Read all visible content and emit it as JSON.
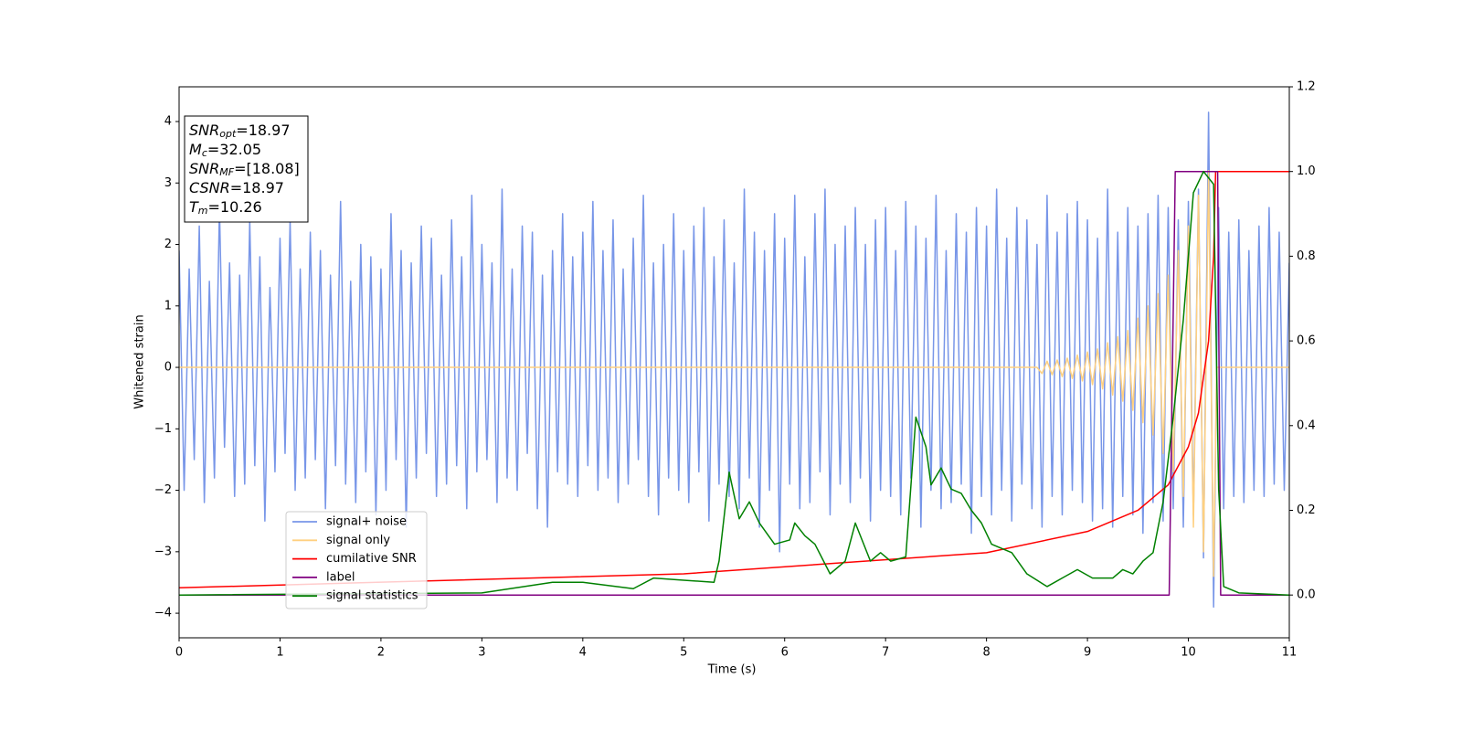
{
  "chart_data": {
    "type": "line",
    "xlabel": "Time (s)",
    "ylabel": "Whitened strain",
    "xlim": [
      0,
      11
    ],
    "xticks": [
      0,
      1,
      2,
      3,
      4,
      5,
      6,
      7,
      8,
      9,
      10,
      11
    ],
    "ylim": [
      -4.4,
      4.565
    ],
    "yticks": [
      {
        "value": -4,
        "label": "−4"
      },
      {
        "value": -3,
        "label": "−3"
      },
      {
        "value": -2,
        "label": "−2"
      },
      {
        "value": -1,
        "label": "−1"
      },
      0,
      1,
      2,
      3,
      4
    ],
    "y2lim": [
      -0.101,
      1.2
    ],
    "y2ticks": [
      {
        "value": 0,
        "label": "0.0"
      },
      {
        "value": 0.2,
        "label": "0.2"
      },
      {
        "value": 0.4,
        "label": "0.4"
      },
      {
        "value": 0.6,
        "label": "0.6"
      },
      {
        "value": 0.8,
        "label": "0.8"
      },
      {
        "value": 1.0,
        "label": "1.0"
      },
      {
        "value": 1.2,
        "label": "1.2"
      }
    ],
    "legend": "lower left",
    "annotation": [
      {
        "base": "SNR",
        "sub": "opt",
        "rest": "=18.97"
      },
      {
        "base": "M",
        "sub": "c",
        "rest": "=32.05"
      },
      {
        "base": "SNR",
        "sub": "MF",
        "rest": "=[18.08]"
      },
      {
        "base": "CSNR",
        "sub": "",
        "rest": "=18.97"
      },
      {
        "base": "T",
        "sub": "m",
        "rest": "=10.26"
      }
    ],
    "series": [
      {
        "name": "signal+ noise",
        "color": "#7896e8",
        "x": [
          0,
          0.05,
          0.1,
          0.15,
          0.2,
          0.25,
          0.3,
          0.35,
          0.4,
          0.45,
          0.5,
          0.55,
          0.6,
          0.65,
          0.7,
          0.75,
          0.8,
          0.85,
          0.9,
          0.95,
          1,
          1.05,
          1.1,
          1.15,
          1.2,
          1.25,
          1.3,
          1.35,
          1.4,
          1.45,
          1.5,
          1.55,
          1.6,
          1.65,
          1.7,
          1.75,
          1.8,
          1.85,
          1.9,
          1.95,
          2,
          2.05,
          2.1,
          2.15,
          2.2,
          2.25,
          2.3,
          2.35,
          2.4,
          2.45,
          2.5,
          2.55,
          2.6,
          2.65,
          2.7,
          2.75,
          2.8,
          2.85,
          2.9,
          2.95,
          3,
          3.05,
          3.1,
          3.15,
          3.2,
          3.25,
          3.3,
          3.35,
          3.4,
          3.45,
          3.5,
          3.55,
          3.6,
          3.65,
          3.7,
          3.75,
          3.8,
          3.85,
          3.9,
          3.95,
          4,
          4.05,
          4.1,
          4.15,
          4.2,
          4.25,
          4.3,
          4.35,
          4.4,
          4.45,
          4.5,
          4.55,
          4.6,
          4.65,
          4.7,
          4.75,
          4.8,
          4.85,
          4.9,
          4.95,
          5,
          5.05,
          5.1,
          5.15,
          5.2,
          5.25,
          5.3,
          5.35,
          5.4,
          5.45,
          5.5,
          5.55,
          5.6,
          5.65,
          5.7,
          5.75,
          5.8,
          5.85,
          5.9,
          5.95,
          6,
          6.05,
          6.1,
          6.15,
          6.2,
          6.25,
          6.3,
          6.35,
          6.4,
          6.45,
          6.5,
          6.55,
          6.6,
          6.65,
          6.7,
          6.75,
          6.8,
          6.85,
          6.9,
          6.95,
          7,
          7.05,
          7.1,
          7.15,
          7.2,
          7.25,
          7.3,
          7.35,
          7.4,
          7.45,
          7.5,
          7.55,
          7.6,
          7.65,
          7.7,
          7.75,
          7.8,
          7.85,
          7.9,
          7.95,
          8,
          8.05,
          8.1,
          8.15,
          8.2,
          8.25,
          8.3,
          8.35,
          8.4,
          8.45,
          8.5,
          8.55,
          8.6,
          8.65,
          8.7,
          8.75,
          8.8,
          8.85,
          8.9,
          8.95,
          9,
          9.05,
          9.1,
          9.15,
          9.2,
          9.25,
          9.3,
          9.35,
          9.4,
          9.45,
          9.5,
          9.55,
          9.6,
          9.65,
          9.7,
          9.75,
          9.8,
          9.85,
          9.9,
          9.95,
          10,
          10.05,
          10.1,
          10.15,
          10.2,
          10.25,
          10.3,
          10.35,
          10.4,
          10.45,
          10.5,
          10.55,
          10.6,
          10.65,
          10.7,
          10.75,
          10.8,
          10.85,
          10.9,
          10.95,
          11
        ],
        "values": [
          1.9,
          -2.0,
          1.6,
          -1.5,
          2.3,
          -2.2,
          1.4,
          -1.8,
          2.6,
          -1.3,
          1.7,
          -2.1,
          1.5,
          -1.9,
          2.4,
          -1.6,
          1.8,
          -2.5,
          1.3,
          -1.7,
          2.1,
          -1.4,
          2.4,
          -2.0,
          1.6,
          -1.8,
          2.2,
          -1.5,
          1.9,
          -2.3,
          1.5,
          -1.6,
          2.7,
          -1.9,
          1.4,
          -2.2,
          2.0,
          -1.7,
          1.8,
          -2.4,
          1.6,
          -2.0,
          2.5,
          -1.5,
          1.9,
          -2.6,
          1.7,
          -1.8,
          2.3,
          -1.4,
          2.1,
          -2.1,
          1.5,
          -1.9,
          2.4,
          -1.6,
          1.8,
          -2.3,
          2.8,
          -1.7,
          2.0,
          -1.5,
          1.7,
          -2.2,
          2.9,
          -1.8,
          1.6,
          -2.0,
          2.3,
          -1.4,
          2.2,
          -2.3,
          1.5,
          -2.6,
          1.9,
          -1.7,
          2.5,
          -1.9,
          1.8,
          -2.1,
          2.2,
          -1.6,
          2.7,
          -2.0,
          1.9,
          -1.8,
          2.4,
          -2.2,
          1.6,
          -1.9,
          2.1,
          -1.5,
          2.8,
          -2.1,
          1.7,
          -2.4,
          2.0,
          -1.8,
          2.5,
          -2.0,
          1.9,
          -2.2,
          2.3,
          -1.7,
          2.6,
          -2.5,
          1.8,
          -1.9,
          2.4,
          -2.1,
          1.7,
          -2.3,
          2.9,
          -1.8,
          2.2,
          -2.6,
          1.9,
          -2.0,
          2.5,
          -3.0,
          2.1,
          -1.9,
          2.8,
          -2.3,
          1.8,
          -2.2,
          2.5,
          -1.7,
          2.9,
          -2.4,
          2.0,
          -1.9,
          2.3,
          -2.2,
          2.6,
          -1.8,
          2.0,
          -2.5,
          2.4,
          -2.0,
          2.6,
          -2.1,
          1.9,
          -2.4,
          2.7,
          -1.8,
          2.3,
          -2.6,
          2.1,
          -2.0,
          2.8,
          -2.3,
          1.9,
          -2.2,
          2.5,
          -1.9,
          2.2,
          -2.7,
          2.6,
          -2.1,
          2.3,
          -2.4,
          2.9,
          -2.0,
          2.1,
          -2.5,
          2.6,
          -1.9,
          2.4,
          -2.3,
          2.0,
          -2.6,
          2.8,
          -2.1,
          2.2,
          -2.4,
          2.5,
          -2.0,
          2.7,
          -2.2,
          2.4,
          -2.5,
          2.1,
          -2.3,
          2.9,
          -2.6,
          2.2,
          -2.1,
          2.6,
          -2.4,
          2.3,
          -2.7,
          2.5,
          -2.2,
          2.8,
          -2.5,
          2.6,
          -2.3,
          2.4,
          -2.6,
          2.7,
          -2.4,
          2.9,
          -3.1,
          4.15,
          -3.9,
          2.6,
          -2.3,
          2.2,
          -2.1,
          2.4,
          -2.2,
          1.9,
          -2.0,
          2.3,
          -2.1,
          2.6,
          -1.9,
          2.2,
          -2.0,
          1.7
        ]
      },
      {
        "name": "signal only",
        "color": "#ffd080",
        "x": [
          0,
          8.5,
          8.55,
          8.6,
          8.65,
          8.7,
          8.75,
          8.8,
          8.85,
          8.9,
          8.95,
          9,
          9.05,
          9.1,
          9.15,
          9.2,
          9.25,
          9.3,
          9.35,
          9.4,
          9.45,
          9.5,
          9.55,
          9.6,
          9.65,
          9.7,
          9.75,
          9.8,
          9.85,
          9.9,
          9.95,
          10,
          10.05,
          10.1,
          10.15,
          10.2,
          10.25,
          10.28,
          11
        ],
        "values": [
          0,
          0,
          -0.1,
          0.1,
          -0.12,
          0.12,
          -0.15,
          0.15,
          -0.18,
          0.2,
          -0.22,
          0.25,
          -0.28,
          0.3,
          -0.35,
          0.4,
          -0.45,
          0.5,
          -0.55,
          0.6,
          -0.7,
          0.8,
          -0.9,
          1.0,
          -1.1,
          1.2,
          -1.4,
          1.5,
          -1.7,
          1.9,
          -2.1,
          2.3,
          -2.6,
          2.8,
          -3.0,
          3.2,
          -3.4,
          0,
          0
        ]
      },
      {
        "name": "cumilative SNR",
        "color": "#ff0000",
        "axis": "y2",
        "x": [
          0,
          5,
          8,
          9,
          9.5,
          9.8,
          10,
          10.1,
          10.2,
          10.25,
          10.27,
          11
        ],
        "values": [
          0.017,
          0.05,
          0.1,
          0.15,
          0.2,
          0.26,
          0.35,
          0.43,
          0.6,
          0.8,
          1.0,
          1.0
        ]
      },
      {
        "name": "label",
        "color": "#800080",
        "axis": "y2",
        "x": [
          0,
          9.81,
          9.87,
          10.29,
          10.32,
          11
        ],
        "values": [
          0,
          0,
          1,
          1,
          0,
          0
        ]
      },
      {
        "name": "signal statistics",
        "color": "#008000",
        "axis": "y2",
        "x": [
          0,
          3.0,
          3.7,
          4.0,
          4.5,
          4.7,
          5.0,
          5.3,
          5.35,
          5.45,
          5.55,
          5.65,
          5.75,
          5.9,
          6.05,
          6.1,
          6.2,
          6.3,
          6.45,
          6.6,
          6.7,
          6.85,
          6.95,
          7.05,
          7.2,
          7.3,
          7.4,
          7.45,
          7.55,
          7.65,
          7.75,
          7.85,
          7.95,
          8.05,
          8.25,
          8.4,
          8.6,
          8.75,
          8.9,
          9.05,
          9.25,
          9.35,
          9.45,
          9.55,
          9.65,
          9.75,
          9.85,
          9.95,
          10.05,
          10.15,
          10.25,
          10.3,
          10.35,
          10.5,
          11
        ],
        "values": [
          0,
          0.005,
          0.03,
          0.03,
          0.015,
          0.04,
          0.035,
          0.03,
          0.08,
          0.29,
          0.18,
          0.22,
          0.17,
          0.12,
          0.13,
          0.17,
          0.14,
          0.12,
          0.05,
          0.08,
          0.17,
          0.08,
          0.1,
          0.08,
          0.09,
          0.42,
          0.35,
          0.26,
          0.3,
          0.25,
          0.24,
          0.2,
          0.17,
          0.12,
          0.1,
          0.05,
          0.02,
          0.04,
          0.06,
          0.04,
          0.04,
          0.06,
          0.05,
          0.08,
          0.1,
          0.22,
          0.42,
          0.65,
          0.95,
          1.0,
          0.97,
          0.25,
          0.02,
          0.005,
          0
        ]
      }
    ]
  }
}
